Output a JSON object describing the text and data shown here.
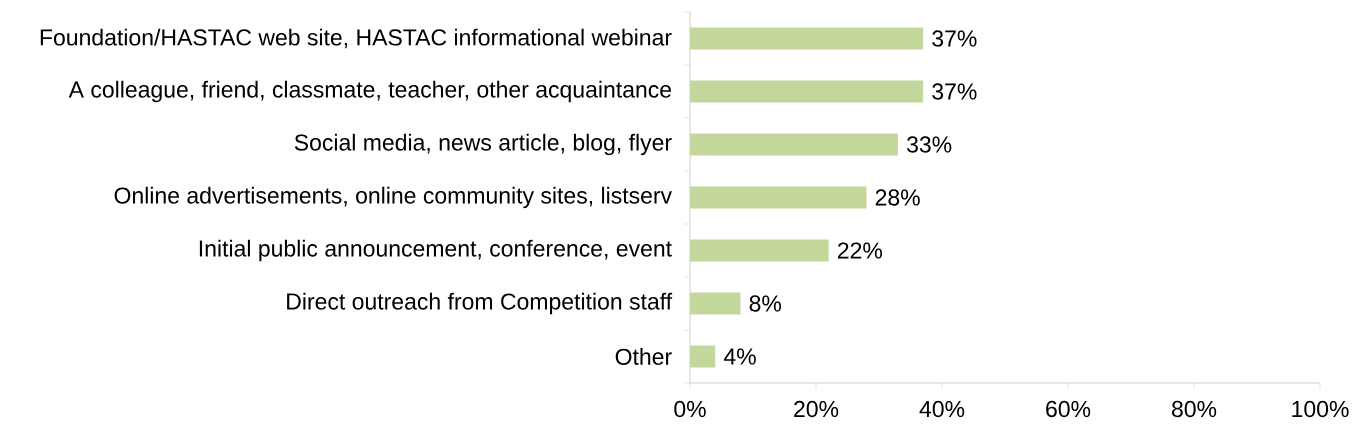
{
  "chart_data": {
    "type": "bar",
    "orientation": "horizontal",
    "categories": [
      "Foundation/HASTAC web site, HASTAC informational webinar",
      "A colleague, friend, classmate, teacher, other acquaintance",
      "Social media, news article, blog, flyer",
      "Online advertisements, online community sites, listserv",
      "Initial public announcement, conference, event",
      "Direct outreach from Competition staff",
      "Other"
    ],
    "values": [
      37,
      37,
      33,
      28,
      22,
      8,
      4
    ],
    "value_labels": [
      "37%",
      "37%",
      "33%",
      "28%",
      "22%",
      "8%",
      "4%"
    ],
    "color": "#c3d69b",
    "xlim": [
      0,
      100
    ],
    "xticks": [
      {
        "value": 0,
        "label": "0%"
      },
      {
        "value": 20,
        "label": "20%"
      },
      {
        "value": 40,
        "label": "40%"
      },
      {
        "value": 60,
        "label": "60%"
      },
      {
        "value": 80,
        "label": "80%"
      },
      {
        "value": 100,
        "label": "100%"
      }
    ],
    "grid": false
  }
}
